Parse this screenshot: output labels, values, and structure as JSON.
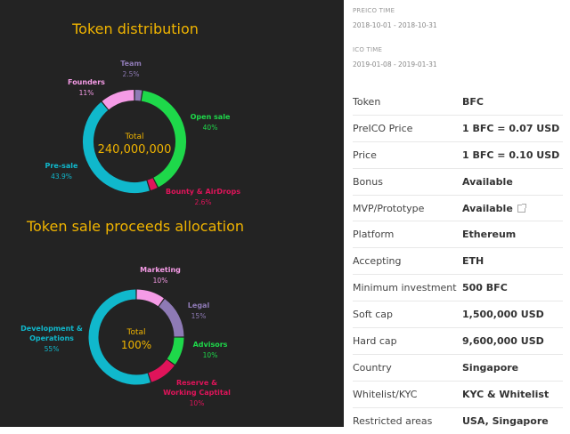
{
  "chart_data": [
    {
      "type": "pie",
      "title": "Token distribution",
      "center_label": "Total",
      "center_value": "240,000,000",
      "slices": [
        {
          "name": "Team",
          "percent": 2.5,
          "label": "2.5%",
          "color": "#8e7ab5"
        },
        {
          "name": "Open sale",
          "percent": 40,
          "label": "40%",
          "color": "#1ed84a"
        },
        {
          "name": "Bounty & AirDrops",
          "percent": 2.6,
          "label": "2.6%",
          "color": "#e0145a"
        },
        {
          "name": "Pre-sale",
          "percent": 43.9,
          "label": "43.9%",
          "color": "#10b8cc"
        },
        {
          "name": "Founders",
          "percent": 11,
          "label": "11%",
          "color": "#f59be6"
        }
      ]
    },
    {
      "type": "pie",
      "title": "Token sale proceeds allocation",
      "center_label": "Total",
      "center_value": "100%",
      "slices": [
        {
          "name": "Marketing",
          "percent": 10,
          "label": "10%",
          "color": "#f59be6"
        },
        {
          "name": "Legal",
          "percent": 15,
          "label": "15%",
          "color": "#8e7ab5"
        },
        {
          "name": "Advisors",
          "percent": 10,
          "label": "10%",
          "color": "#1ed84a"
        },
        {
          "name": "Reserve & Working Captital",
          "percent": 10,
          "label": "10%",
          "color": "#e0145a"
        },
        {
          "name": "Development & Operations",
          "percent": 55,
          "label": "55%",
          "color": "#10b8cc"
        }
      ]
    }
  ],
  "ico": {
    "preico_label": "PREICO TIME",
    "preico_value": "2018-10-01 - 2018-10-31",
    "ico_label": "ICO TIME",
    "ico_value": "2019-01-08 - 2019-01-31"
  },
  "details": [
    {
      "k": "Token",
      "v": "BFC"
    },
    {
      "k": "PreICO Price",
      "v": "1 BFC = 0.07 USD"
    },
    {
      "k": "Price",
      "v": "1 BFC = 0.10 USD"
    },
    {
      "k": "Bonus",
      "v": "Available"
    },
    {
      "k": "MVP/Prototype",
      "v": "Available",
      "link": true
    },
    {
      "k": "Platform",
      "v": "Ethereum"
    },
    {
      "k": "Accepting",
      "v": "ETH"
    },
    {
      "k": "Minimum investment",
      "v": "500 BFC"
    },
    {
      "k": "Soft cap",
      "v": "1,500,000 USD"
    },
    {
      "k": "Hard cap",
      "v": "9,600,000 USD"
    },
    {
      "k": "Country",
      "v": "Singapore"
    },
    {
      "k": "Whitelist/KYC",
      "v": "KYC & Whitelist"
    },
    {
      "k": "Restricted areas",
      "v": "USA, Singapore"
    }
  ]
}
